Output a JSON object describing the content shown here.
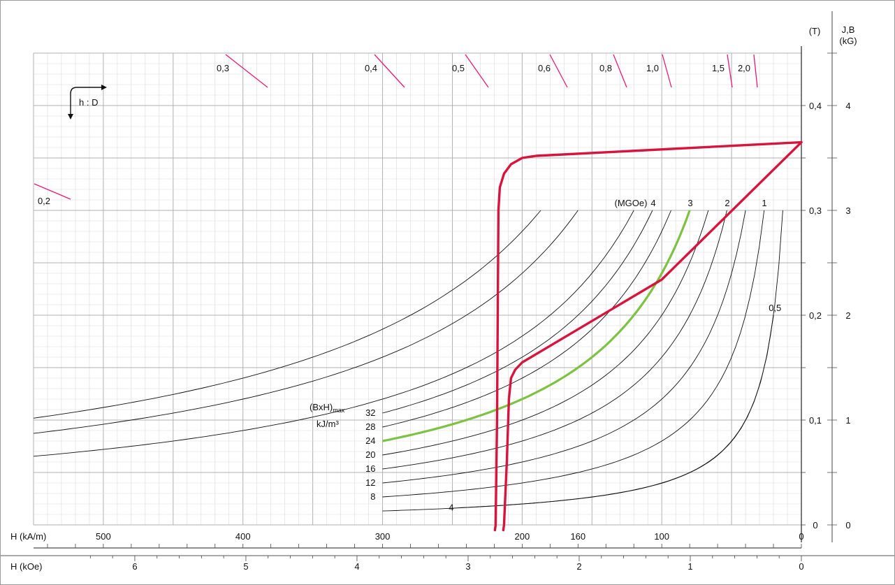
{
  "chart_data": {
    "type": "line",
    "title": "",
    "axes": {
      "x_kAm": {
        "label": "H (kA/m)",
        "range": [
          0,
          550
        ],
        "direction": "reversed",
        "ticks": [
          {
            "v": 500,
            "t": "500"
          },
          {
            "v": 400,
            "t": "400"
          },
          {
            "v": 300,
            "t": "300"
          },
          {
            "v": 200,
            "t": "200"
          },
          {
            "v": 160,
            "t": "160",
            "color": "#7dc242"
          },
          {
            "v": 100,
            "t": "100"
          },
          {
            "v": 0,
            "t": "0"
          }
        ]
      },
      "x_kOe": {
        "label": "H (kOe)",
        "ticks": [
          {
            "v": 6,
            "t": "6"
          },
          {
            "v": 5,
            "t": "5"
          },
          {
            "v": 4,
            "t": "4"
          },
          {
            "v": 3,
            "t": "3"
          },
          {
            "v": 2,
            "t": "2"
          },
          {
            "v": 1,
            "t": "1"
          },
          {
            "v": 0,
            "t": "0"
          }
        ]
      },
      "y_T": {
        "label": "(T)",
        "range": [
          0,
          0.45
        ],
        "ticks": [
          {
            "v": 0,
            "t": "0"
          },
          {
            "v": 0.1,
            "t": "0,1"
          },
          {
            "v": 0.2,
            "t": "0,2"
          },
          {
            "v": 0.3,
            "t": "0,3"
          },
          {
            "v": 0.4,
            "t": "0,4"
          }
        ]
      },
      "y_kG": {
        "label_lines": [
          "J,B",
          "(kG)"
        ],
        "ticks": [
          {
            "v": 0,
            "t": "0"
          },
          {
            "v": 1,
            "t": "1"
          },
          {
            "v": 2,
            "t": "2"
          },
          {
            "v": 3,
            "t": "3"
          },
          {
            "v": 4,
            "t": "4"
          }
        ]
      }
    },
    "grid": true,
    "orientation_icon_label": "h : D",
    "energy_product_label": {
      "line1": "(BxH)",
      "sub": "max",
      "line2": "kJ/m³"
    },
    "mgoe_header": "(MGOe)",
    "energy_curves_kJ": [
      {
        "value": 32,
        "label": "32"
      },
      {
        "value": 28,
        "label": "28"
      },
      {
        "value": 24,
        "label": "24",
        "highlight": true,
        "color": "#7dc242"
      },
      {
        "value": 20,
        "label": "20"
      },
      {
        "value": 16,
        "label": "16"
      },
      {
        "value": 12,
        "label": "12"
      },
      {
        "value": 8,
        "label": "8"
      },
      {
        "value": 4,
        "label": "4"
      }
    ],
    "energy_curves_MGOe": [
      {
        "value": 4,
        "label": "4"
      },
      {
        "value": 3,
        "label": "3"
      },
      {
        "value": 2,
        "label": "2"
      },
      {
        "value": 1,
        "label": "1"
      },
      {
        "value": 0.5,
        "label": "0,5"
      }
    ],
    "permeance_marks": [
      {
        "t": "0,2"
      },
      {
        "t": "0,3"
      },
      {
        "t": "0,4"
      },
      {
        "t": "0,5"
      },
      {
        "t": "0,6"
      },
      {
        "t": "0,8"
      },
      {
        "t": "1,0"
      },
      {
        "t": "1,5"
      },
      {
        "t": "2,0"
      }
    ],
    "series": [
      {
        "kind": "J",
        "color": "#d7143c",
        "points": [
          [
            0,
            0.365
          ],
          [
            190,
            0.352
          ],
          [
            200,
            0.35
          ],
          [
            208,
            0.344
          ],
          [
            213,
            0.335
          ],
          [
            216,
            0.322
          ],
          [
            217,
            0.3
          ],
          [
            217.5,
            0.2
          ],
          [
            218,
            0.1
          ],
          [
            219,
            0
          ],
          [
            219.5,
            -0.005
          ]
        ]
      },
      {
        "kind": "B",
        "color": "#d7143c",
        "points": [
          [
            0,
            0.365
          ],
          [
            100,
            0.234
          ],
          [
            200,
            0.155
          ],
          [
            205,
            0.148
          ],
          [
            208,
            0.14
          ],
          [
            209.5,
            0.12
          ],
          [
            211,
            0.06
          ],
          [
            213,
            0
          ],
          [
            213.5,
            -0.005
          ]
        ]
      }
    ],
    "colors": {
      "curve_red": "#d7143c",
      "curve_green": "#7dc242",
      "permeance_pink": "#e8197a"
    }
  }
}
